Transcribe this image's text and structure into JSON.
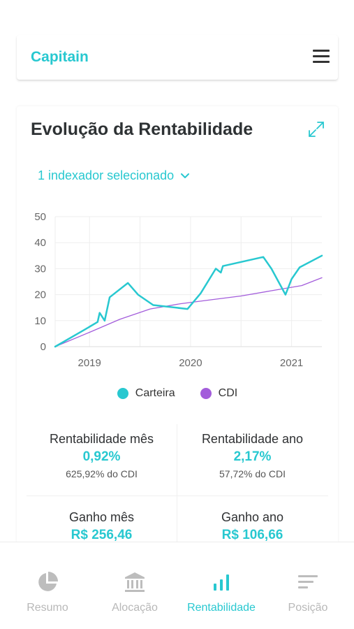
{
  "header": {
    "brand": "Capitain"
  },
  "card": {
    "title": "Evolução da Rentabilidade",
    "selector_label": "1 indexador selecionado"
  },
  "chart_data": {
    "type": "line",
    "x_ticks": [
      "2019",
      "2020",
      "2021"
    ],
    "y_ticks": [
      "0",
      "10",
      "20",
      "30",
      "40",
      "50"
    ],
    "ylim": [
      0,
      50
    ],
    "grid": true,
    "legend_position": "bottom",
    "colors": {
      "carteira": "#28c8d0",
      "cdi": "#a35ddb"
    },
    "series": [
      {
        "name": "Carteira",
        "x": [
          2018.66,
          2018.95,
          2019.08,
          2019.1,
          2019.15,
          2019.2,
          2019.38,
          2019.48,
          2019.63,
          2019.97,
          2020.1,
          2020.25,
          2020.3,
          2020.32,
          2020.72,
          2020.8,
          2020.94,
          2021.0,
          2021.08,
          2021.3
        ],
        "values": [
          0,
          6.5,
          9.5,
          13,
          10,
          19,
          24.5,
          20,
          16,
          14.5,
          20.5,
          30,
          28.5,
          31,
          34.5,
          30,
          20,
          26,
          30.5,
          35
        ]
      },
      {
        "name": "CDI",
        "x": [
          2018.66,
          2019.0,
          2019.3,
          2019.6,
          2019.9,
          2020.2,
          2020.5,
          2020.8,
          2021.1,
          2021.3
        ],
        "values": [
          0,
          5.5,
          10.5,
          14.5,
          16.5,
          18,
          19.5,
          21.5,
          23.5,
          26.5
        ]
      }
    ]
  },
  "stats": [
    {
      "label": "Rentabilidade mês",
      "value": "0,92%",
      "sub": "625,92% do CDI"
    },
    {
      "label": "Rentabilidade ano",
      "value": "2,17%",
      "sub": "57,72% do CDI"
    },
    {
      "label": "Ganho mês",
      "value": "R$ 256,46"
    },
    {
      "label": "Ganho ano",
      "value": "R$ 106,66"
    }
  ],
  "nav": [
    {
      "label": "Resumo",
      "icon": "pie-chart-icon",
      "active": false
    },
    {
      "label": "Alocação",
      "icon": "bank-icon",
      "active": false
    },
    {
      "label": "Rentabilidade",
      "icon": "bar-chart-icon",
      "active": true
    },
    {
      "label": "Posição",
      "icon": "list-icon",
      "active": false
    }
  ]
}
